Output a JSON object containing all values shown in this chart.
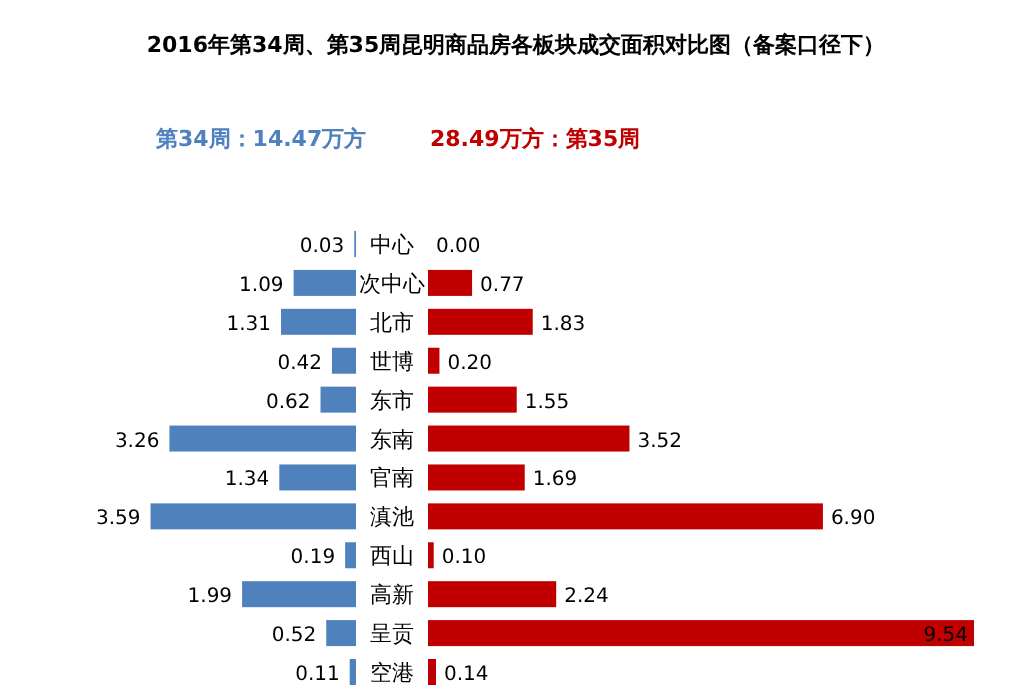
{
  "chart_data": [
    {
      "type": "bar",
      "orientation": "horizontal",
      "title": "2016年第34周、第35周昆明商品房各板块成交面积对比图（备案口径下）",
      "legend": "top",
      "categories": [
        "中心",
        "次中心",
        "北市",
        "世博",
        "东市",
        "东南",
        "官南",
        "滇池",
        "西山",
        "高新",
        "呈贡",
        "空港"
      ],
      "series": [
        {
          "name": "第34周：14.47万方",
          "color": "#4f81bd",
          "values": [
            0.03,
            1.09,
            1.31,
            0.42,
            0.62,
            3.26,
            1.34,
            3.59,
            0.19,
            1.99,
            0.52,
            0.11
          ],
          "value_labels": [
            "0.03",
            "1.09",
            "1.31",
            "0.42",
            "0.62",
            "3.26",
            "1.34",
            "3.59",
            "0.19",
            "1.99",
            "0.52",
            "0.11"
          ]
        }
      ]
    },
    {
      "type": "bar",
      "orientation": "horizontal",
      "legend": "top",
      "categories": [
        null,
        null,
        null,
        null,
        null,
        null,
        null,
        null,
        null,
        null,
        null,
        null
      ],
      "series": [
        {
          "name": "28.49万方：第35周",
          "color": "#c00000",
          "values": [
            0.0,
            0.77,
            1.83,
            0.2,
            1.55,
            3.52,
            1.69,
            6.9,
            0.1,
            2.24,
            9.54,
            0.14
          ],
          "value_labels": [
            "0.00",
            "0.77",
            "1.83",
            "0.20",
            "1.55",
            "3.52",
            "1.69",
            "6.90",
            "0.10",
            "2.24",
            "9.54",
            "0.14"
          ]
        }
      ]
    }
  ]
}
